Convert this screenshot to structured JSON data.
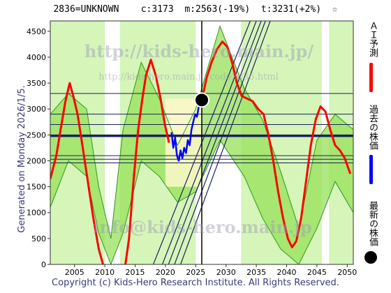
{
  "header": {
    "code": "2836=UNKNOWN",
    "current": "c:3173",
    "middle": "m:2563(-19%)",
    "target": "t:3231(+2%)",
    "star": "☆"
  },
  "side_label": "Generated on Monday 2026/1/5.",
  "footer": "Copyright (c) Kids-Hero Research Institute. All Rights Reserved.",
  "watermarks": {
    "line1": "http://kids-hero.main.jp/",
    "line2": "http://kids-hero.main.jp/code2836.html",
    "line3": "info@kids-hero.main.jp"
  },
  "legend": {
    "ai_forecast": "ＡＩ予測",
    "past_price": "過去の株価",
    "latest_price": "最新の株価"
  },
  "colors": {
    "forecast": "#ff0000",
    "past": "#0000ff",
    "band_dark": "#96e05a",
    "band_light": "#d6f5b8",
    "cream": "#fdf8c8",
    "grid_line": "#1a2060"
  },
  "chart_data": {
    "type": "line",
    "xlim": [
      2001,
      2051
    ],
    "ylim": [
      0,
      4700
    ],
    "xticks": [
      2005,
      2010,
      2015,
      2020,
      2025,
      2030,
      2035,
      2040,
      2045,
      2050
    ],
    "yticks": [
      0,
      500,
      1000,
      1500,
      2000,
      2500,
      3000,
      3500,
      4000,
      4500
    ],
    "latest": {
      "x": 2026.0,
      "y": 3173
    },
    "vline_x": 2026.0,
    "hlines": [
      3300,
      2900,
      2700,
      2500,
      2470,
      2100,
      2030,
      1960
    ],
    "thick_hline": 2480,
    "diagonal_lines": [
      {
        "x1": 2018.0,
        "y1": 0,
        "x2": 2034.0,
        "y2": 4700
      },
      {
        "x1": 2019.5,
        "y1": 0,
        "x2": 2035.0,
        "y2": 4700
      },
      {
        "x1": 2020.5,
        "y1": 0,
        "x2": 2035.8,
        "y2": 4700
      },
      {
        "x1": 2021.5,
        "y1": 0,
        "x2": 2036.5,
        "y2": 4700
      },
      {
        "x1": 2022.5,
        "y1": 0,
        "x2": 2037.3,
        "y2": 4700
      }
    ],
    "green_bands": [
      [
        2001,
        2010
      ],
      [
        2012.5,
        2025.0
      ],
      [
        2032.5,
        2045.8
      ],
      [
        2047,
        2051
      ]
    ],
    "band_level_upper": [
      [
        2001,
        2900
      ],
      [
        2004,
        3300
      ],
      [
        2007,
        3000
      ],
      [
        2009,
        1500
      ],
      [
        2011,
        500
      ],
      [
        2013,
        2600
      ],
      [
        2016,
        3900
      ],
      [
        2019,
        3200
      ],
      [
        2022,
        2300
      ],
      [
        2025,
        3000
      ],
      [
        2029,
        4600
      ],
      [
        2033,
        3400
      ],
      [
        2036,
        2800
      ],
      [
        2039,
        1800
      ],
      [
        2042,
        700
      ],
      [
        2045,
        2400
      ],
      [
        2048,
        2900
      ],
      [
        2051,
        2600
      ]
    ],
    "band_level_lower": [
      [
        2001,
        1100
      ],
      [
        2004,
        2000
      ],
      [
        2007,
        1700
      ],
      [
        2009,
        600
      ],
      [
        2011,
        0
      ],
      [
        2013,
        600
      ],
      [
        2016,
        2000
      ],
      [
        2019,
        1700
      ],
      [
        2022,
        1200
      ],
      [
        2025,
        1400
      ],
      [
        2029,
        2400
      ],
      [
        2033,
        1700
      ],
      [
        2036,
        900
      ],
      [
        2039,
        300
      ],
      [
        2042,
        0
      ],
      [
        2045,
        700
      ],
      [
        2048,
        1600
      ],
      [
        2051,
        1000
      ]
    ],
    "series": [
      {
        "name": "ＡＩ予測",
        "points": [
          [
            2001,
            1650
          ],
          [
            2002,
            2100
          ],
          [
            2002.7,
            2600
          ],
          [
            2003.5,
            3150
          ],
          [
            2004.2,
            3500
          ],
          [
            2004.8,
            3250
          ],
          [
            2005.5,
            2900
          ],
          [
            2006.3,
            2300
          ],
          [
            2007.2,
            1600
          ],
          [
            2008.1,
            900
          ],
          [
            2009.0,
            300
          ],
          [
            2009.7,
            0
          ],
          [
            2013.4,
            0
          ],
          [
            2014.0,
            500
          ],
          [
            2014.8,
            1700
          ],
          [
            2015.5,
            2600
          ],
          [
            2016.2,
            3200
          ],
          [
            2016.8,
            3650
          ],
          [
            2017.6,
            3950
          ],
          [
            2018.4,
            3650
          ],
          [
            2019.2,
            3200
          ],
          [
            2019.9,
            2700
          ],
          [
            2020.6,
            2350
          ],
          [
            2026.0,
            3173
          ],
          [
            2026.8,
            3600
          ],
          [
            2027.6,
            3900
          ],
          [
            2028.5,
            4150
          ],
          [
            2029.4,
            4300
          ],
          [
            2030.2,
            4200
          ],
          [
            2031.0,
            3900
          ],
          [
            2031.8,
            3500
          ],
          [
            2032.6,
            3250
          ],
          [
            2033.5,
            3200
          ],
          [
            2034.4,
            3150
          ],
          [
            2035.3,
            3000
          ],
          [
            2036.2,
            2900
          ],
          [
            2037.0,
            2500
          ],
          [
            2037.8,
            2000
          ],
          [
            2038.6,
            1400
          ],
          [
            2039.4,
            900
          ],
          [
            2040.2,
            500
          ],
          [
            2040.9,
            330
          ],
          [
            2041.6,
            450
          ],
          [
            2042.4,
            900
          ],
          [
            2043.2,
            1600
          ],
          [
            2044.0,
            2300
          ],
          [
            2044.8,
            2800
          ],
          [
            2045.6,
            3050
          ],
          [
            2046.4,
            2950
          ],
          [
            2047.2,
            2600
          ],
          [
            2048.0,
            2300
          ],
          [
            2048.8,
            2200
          ],
          [
            2049.6,
            2050
          ],
          [
            2050.5,
            1750
          ]
        ]
      },
      {
        "name": "過去の株価",
        "points": [
          [
            2021.0,
            2550
          ],
          [
            2021.3,
            2250
          ],
          [
            2021.6,
            2450
          ],
          [
            2021.9,
            2100
          ],
          [
            2022.2,
            2000
          ],
          [
            2022.5,
            2200
          ],
          [
            2022.8,
            2050
          ],
          [
            2023.1,
            2250
          ],
          [
            2023.4,
            2150
          ],
          [
            2023.7,
            2400
          ],
          [
            2024.0,
            2300
          ],
          [
            2024.3,
            2600
          ],
          [
            2024.6,
            2750
          ],
          [
            2024.9,
            2900
          ],
          [
            2025.2,
            2850
          ],
          [
            2025.5,
            3050
          ],
          [
            2025.8,
            3100
          ],
          [
            2026.0,
            3173
          ]
        ]
      }
    ]
  }
}
